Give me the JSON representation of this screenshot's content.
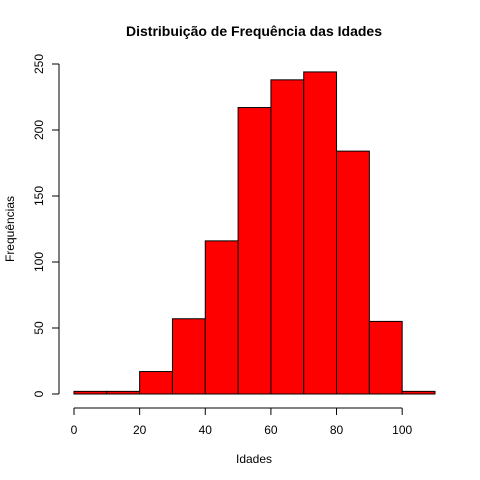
{
  "chart_data": {
    "type": "bar",
    "title": "Distribuição de Frequência das Idades",
    "xlabel": "Idades",
    "ylabel": "Frequências",
    "bins": [
      {
        "from": 0,
        "to": 10,
        "count": 2
      },
      {
        "from": 10,
        "to": 20,
        "count": 2
      },
      {
        "from": 20,
        "to": 30,
        "count": 17
      },
      {
        "from": 30,
        "to": 40,
        "count": 57
      },
      {
        "from": 40,
        "to": 50,
        "count": 116
      },
      {
        "from": 50,
        "to": 60,
        "count": 217
      },
      {
        "from": 60,
        "to": 70,
        "count": 238
      },
      {
        "from": 70,
        "to": 80,
        "count": 244
      },
      {
        "from": 80,
        "to": 90,
        "count": 184
      },
      {
        "from": 90,
        "to": 100,
        "count": 55
      },
      {
        "from": 100,
        "to": 110,
        "count": 2
      }
    ],
    "xlim": [
      0,
      110
    ],
    "ylim": [
      0,
      250
    ],
    "xticks": [
      "0",
      "20",
      "40",
      "60",
      "80",
      "100"
    ],
    "yticks": [
      "0",
      "50",
      "100",
      "150",
      "200",
      "250"
    ],
    "grid": false,
    "bar_color": "#ff0000"
  }
}
